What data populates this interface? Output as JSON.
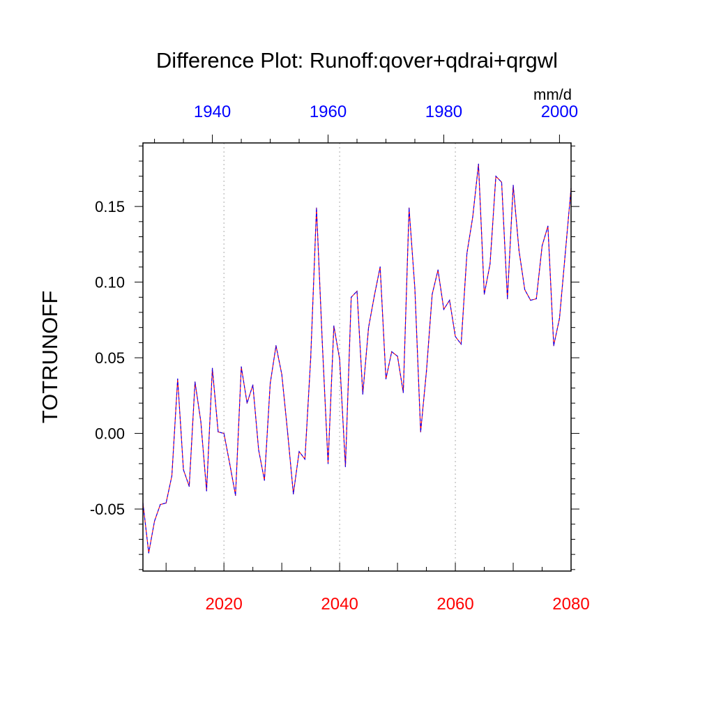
{
  "chart_data": {
    "type": "line",
    "title": "Difference Plot: Runoff:qover+qdrai+qrgwl",
    "ylabel": "TOTRUNOFF",
    "units": "mm/d",
    "xlim": [
      2006,
      2080
    ],
    "ylim": [
      -0.091,
      0.192
    ],
    "y_ticks": [
      -0.05,
      0.0,
      0.05,
      0.1,
      0.15
    ],
    "y_tick_labels": [
      "-0.05",
      "0.00",
      "0.05",
      "0.10",
      "0.15"
    ],
    "x_bottom_ticks": [
      2020,
      2040,
      2060,
      2080
    ],
    "x_bottom_tick_labels": [
      "2020",
      "2040",
      "2060",
      "2080"
    ],
    "x_bottom_color": "#ff0000",
    "x_top_ticks": [
      1940,
      1960,
      1980,
      2000
    ],
    "x_top_tick_labels": [
      "1940",
      "1960",
      "1980",
      "2000"
    ],
    "x_top_color": "#0000ff",
    "top_axis_offset_years": 78,
    "grid_x": [
      2020,
      2040,
      2060
    ],
    "grid": "vertical dotted at labeled bottom ticks",
    "series": [
      {
        "color": "#ff0000",
        "style": "solid",
        "x": [
          2006,
          2007,
          2008,
          2009,
          2010,
          2011,
          2012,
          2013,
          2014,
          2015,
          2016,
          2017,
          2018,
          2019,
          2020,
          2021,
          2022,
          2023,
          2024,
          2025,
          2026,
          2027,
          2028,
          2029,
          2030,
          2031,
          2032,
          2033,
          2034,
          2035,
          2036,
          2037,
          2038,
          2039,
          2040,
          2041,
          2042,
          2043,
          2044,
          2045,
          2046,
          2047,
          2048,
          2049,
          2050,
          2051,
          2052,
          2053,
          2054,
          2055,
          2056,
          2057,
          2058,
          2059,
          2060,
          2061,
          2062,
          2063,
          2064,
          2065,
          2066,
          2067,
          2068,
          2069,
          2070,
          2071,
          2072,
          2073,
          2074,
          2075,
          2076,
          2077,
          2078,
          2079,
          2080
        ],
        "values": [
          -0.046,
          -0.079,
          -0.058,
          -0.047,
          -0.046,
          -0.028,
          0.036,
          -0.024,
          -0.035,
          0.034,
          0.008,
          -0.038,
          0.043,
          0.001,
          0.0,
          -0.02,
          -0.041,
          0.044,
          0.02,
          0.032,
          -0.011,
          -0.031,
          0.033,
          0.058,
          0.039,
          0.001,
          -0.04,
          -0.012,
          -0.017,
          0.05,
          0.149,
          0.06,
          -0.02,
          0.071,
          0.049,
          -0.022,
          0.09,
          0.094,
          0.026,
          0.07,
          0.091,
          0.11,
          0.036,
          0.054,
          0.051,
          0.027,
          0.149,
          0.096,
          0.001,
          0.041,
          0.092,
          0.108,
          0.082,
          0.088,
          0.064,
          0.059,
          0.119,
          0.143,
          0.178,
          0.092,
          0.112,
          0.17,
          0.166,
          0.089,
          0.164,
          0.121,
          0.095,
          0.088,
          0.089,
          0.124,
          0.137,
          0.058,
          0.076,
          0.119,
          0.162
        ]
      },
      {
        "color": "#0000ff",
        "style": "dashed",
        "x": [
          2006,
          2007,
          2008,
          2009,
          2010,
          2011,
          2012,
          2013,
          2014,
          2015,
          2016,
          2017,
          2018,
          2019,
          2020,
          2021,
          2022,
          2023,
          2024,
          2025,
          2026,
          2027,
          2028,
          2029,
          2030,
          2031,
          2032,
          2033,
          2034,
          2035,
          2036,
          2037,
          2038,
          2039,
          2040,
          2041,
          2042,
          2043,
          2044,
          2045,
          2046,
          2047,
          2048,
          2049,
          2050,
          2051,
          2052,
          2053,
          2054,
          2055,
          2056,
          2057,
          2058,
          2059,
          2060,
          2061,
          2062,
          2063,
          2064,
          2065,
          2066,
          2067,
          2068,
          2069,
          2070,
          2071,
          2072,
          2073,
          2074,
          2075,
          2076,
          2077,
          2078,
          2079,
          2080
        ],
        "values": [
          -0.046,
          -0.079,
          -0.058,
          -0.047,
          -0.046,
          -0.028,
          0.036,
          -0.024,
          -0.035,
          0.034,
          0.008,
          -0.038,
          0.043,
          0.001,
          0.0,
          -0.02,
          -0.041,
          0.044,
          0.02,
          0.032,
          -0.011,
          -0.031,
          0.033,
          0.058,
          0.039,
          0.001,
          -0.04,
          -0.012,
          -0.017,
          0.05,
          0.149,
          0.06,
          -0.02,
          0.071,
          0.049,
          -0.022,
          0.09,
          0.094,
          0.026,
          0.07,
          0.091,
          0.11,
          0.036,
          0.054,
          0.051,
          0.027,
          0.149,
          0.096,
          0.001,
          0.041,
          0.092,
          0.108,
          0.082,
          0.088,
          0.064,
          0.059,
          0.119,
          0.143,
          0.178,
          0.092,
          0.112,
          0.17,
          0.166,
          0.089,
          0.164,
          0.121,
          0.095,
          0.088,
          0.089,
          0.124,
          0.137,
          0.058,
          0.076,
          0.119,
          0.162
        ]
      }
    ]
  }
}
